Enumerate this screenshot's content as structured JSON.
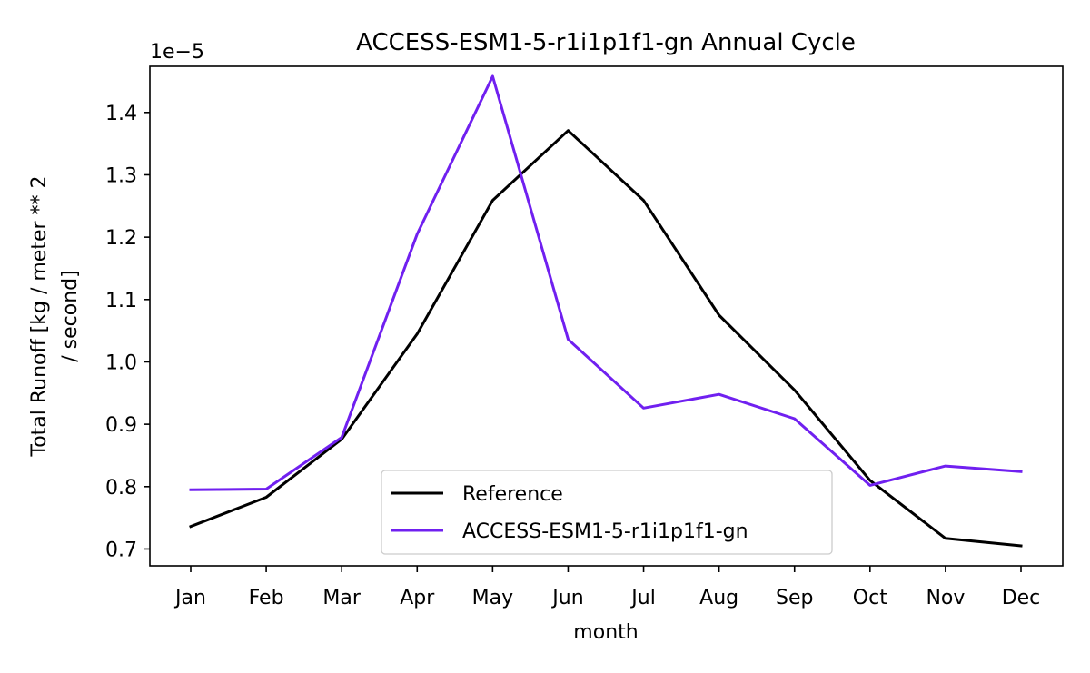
{
  "chart_data": {
    "type": "line",
    "title": "ACCESS-ESM1-5-r1i1p1f1-gn Annual Cycle",
    "xlabel": "month",
    "ylabel_lines": [
      "Total Runoff [kg / meter ** 2",
      "/ second]"
    ],
    "offset_text": "1e−5",
    "categories": [
      "Jan",
      "Feb",
      "Mar",
      "Apr",
      "May",
      "Jun",
      "Jul",
      "Aug",
      "Sep",
      "Oct",
      "Nov",
      "Dec"
    ],
    "ylim": [
      0.673,
      1.474
    ],
    "yticks": [
      "0.7",
      "0.8",
      "0.9",
      "1.0",
      "1.1",
      "1.2",
      "1.3",
      "1.4"
    ],
    "grid": false,
    "legend_position": "lower center",
    "series": [
      {
        "name": "Reference",
        "color": "#000000",
        "values": [
          0.736,
          0.783,
          0.876,
          1.045,
          1.259,
          1.371,
          1.259,
          1.075,
          0.955,
          0.81,
          0.717,
          0.705
        ]
      },
      {
        "name": "ACCESS-ESM1-5-r1i1p1f1-gn",
        "color": "#7020f0",
        "values": [
          0.795,
          0.796,
          0.879,
          1.205,
          1.458,
          1.036,
          0.926,
          0.948,
          0.909,
          0.802,
          0.833,
          0.824
        ]
      }
    ]
  }
}
